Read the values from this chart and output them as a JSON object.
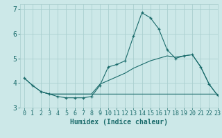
{
  "title": "",
  "xlabel": "Humidex (Indice chaleur)",
  "xlim": [
    -0.5,
    23
  ],
  "ylim": [
    3.0,
    7.2
  ],
  "yticks": [
    3,
    4,
    5,
    6,
    7
  ],
  "xticks": [
    0,
    1,
    2,
    3,
    4,
    5,
    6,
    7,
    8,
    9,
    10,
    11,
    12,
    13,
    14,
    15,
    16,
    17,
    18,
    19,
    20,
    21,
    22,
    23
  ],
  "bg_color": "#cce8e8",
  "grid_color": "#aacfcf",
  "line_color": "#1a6b6b",
  "line1_x": [
    0,
    1,
    2,
    3,
    4,
    5,
    6,
    7,
    8,
    9,
    10,
    11,
    12,
    13,
    14,
    15,
    16,
    17,
    18,
    19,
    20,
    21,
    22,
    23
  ],
  "line1_y": [
    4.2,
    3.9,
    3.65,
    3.55,
    3.45,
    3.4,
    3.4,
    3.4,
    3.45,
    3.9,
    4.65,
    4.75,
    4.9,
    5.9,
    6.85,
    6.65,
    6.2,
    5.35,
    5.0,
    5.1,
    5.15,
    4.65,
    3.95,
    3.5
  ],
  "line2_x": [
    0,
    1,
    2,
    3,
    4,
    5,
    6,
    7,
    8,
    9,
    10,
    11,
    12,
    13,
    14,
    15,
    16,
    17,
    18,
    19,
    20,
    21,
    22,
    23
  ],
  "line2_y": [
    4.2,
    3.9,
    3.65,
    3.55,
    3.55,
    3.55,
    3.55,
    3.55,
    3.55,
    3.55,
    3.55,
    3.55,
    3.55,
    3.55,
    3.55,
    3.55,
    3.55,
    3.55,
    3.55,
    3.55,
    3.55,
    3.55,
    3.55,
    3.55
  ],
  "line3_x": [
    2,
    3,
    4,
    5,
    6,
    7,
    8,
    9,
    10,
    11,
    12,
    13,
    14,
    15,
    16,
    17,
    18,
    19,
    20,
    21,
    22,
    23
  ],
  "line3_y": [
    3.65,
    3.55,
    3.55,
    3.55,
    3.55,
    3.55,
    3.55,
    3.95,
    4.1,
    4.25,
    4.4,
    4.6,
    4.75,
    4.9,
    5.0,
    5.1,
    5.05,
    5.1,
    5.15,
    4.65,
    3.95,
    3.5
  ],
  "tick_fontsize": 6,
  "xlabel_fontsize": 7
}
